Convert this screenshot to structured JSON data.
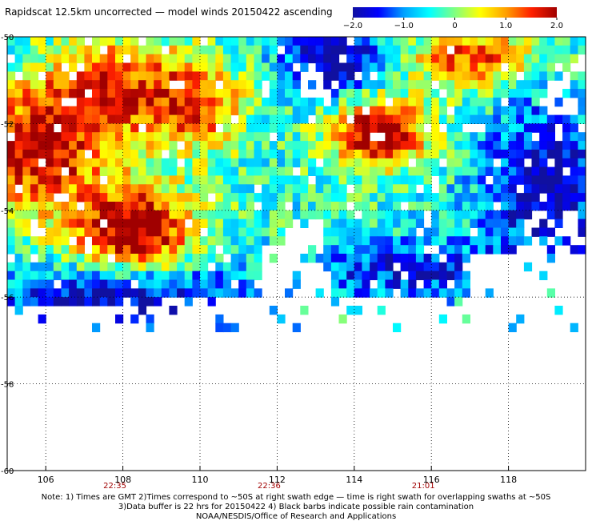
{
  "title": "Rapidscat 12.5km uncorrected — model winds 20150422 ascending",
  "colorbar": {
    "min": -2.0,
    "max": 2.0,
    "tick_labels": [
      "−2.0",
      "−1.0",
      "0",
      "1.0",
      "2.0"
    ],
    "tick_values": [
      -2.0,
      -1.0,
      0,
      1.0,
      2.0
    ],
    "colors": [
      "#1010a0",
      "#0000ff",
      "#00a0ff",
      "#00ffff",
      "#80ff80",
      "#ffff00",
      "#ffa000",
      "#ff2000",
      "#a00000"
    ]
  },
  "chart_data": {
    "type": "heatmap",
    "xlim": [
      105,
      120
    ],
    "ylim": [
      -60,
      -50
    ],
    "x_ticks": [
      106,
      108,
      110,
      112,
      114,
      116,
      118
    ],
    "y_ticks": [
      -50,
      -52,
      -54,
      -56,
      -58,
      -60
    ],
    "x_tick_labels": [
      "106",
      "108",
      "110",
      "112",
      "114",
      "116",
      "118"
    ],
    "y_tick_labels": [
      "-50",
      "-52",
      "-54",
      "-56",
      "-58",
      "-60"
    ],
    "grid": true,
    "swath_times": [
      {
        "lon": 108,
        "label": "22:35"
      },
      {
        "lon": 112,
        "label": "22:36"
      },
      {
        "lon": 116,
        "label": "21:01"
      }
    ],
    "cell_size_deg": 0.2,
    "data_extent": {
      "lon": [
        105,
        120
      ],
      "lat": [
        -56.6,
        -50
      ]
    },
    "value_range": [
      -2.0,
      2.0
    ]
  },
  "notes": [
    "Note: 1) Times are GMT 2)Times correspond to ~50S at right swath edge — time is right swath for overlapping swaths at ~50S",
    "3)Data buffer is 22 hrs for 20150422 4) Black barbs indicate possible rain contamination",
    "NOAA/NESDIS/Office of Research and Applications"
  ]
}
